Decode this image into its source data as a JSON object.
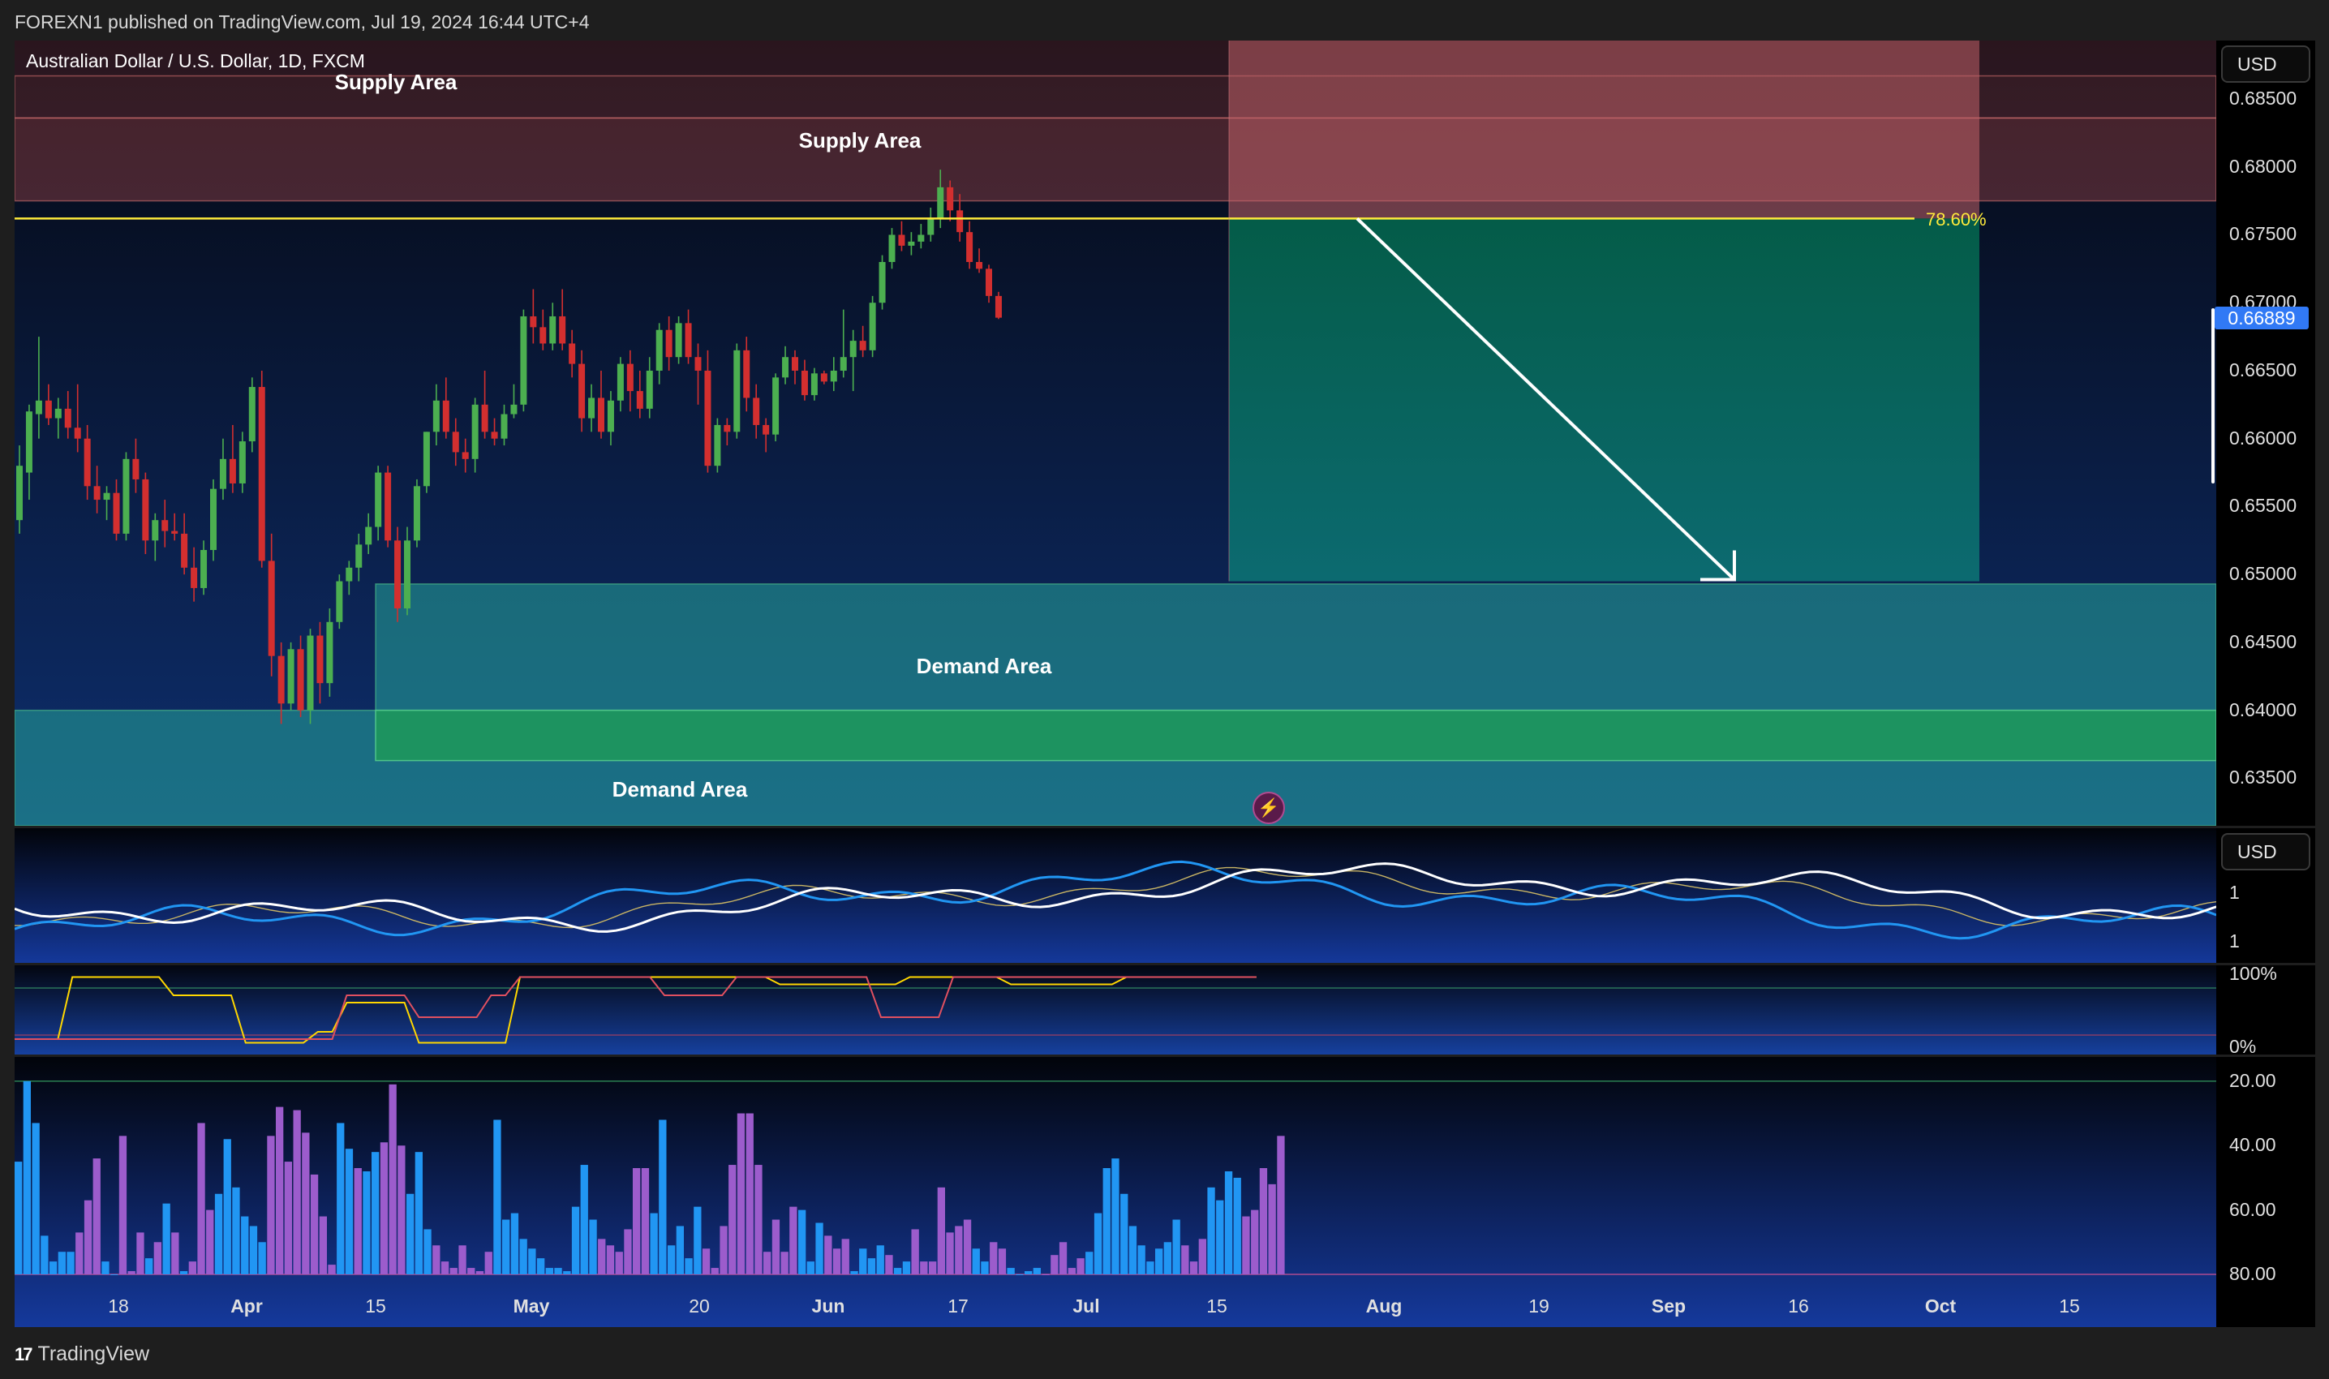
{
  "header": {
    "published": "FOREXN1 published on TradingView.com, Jul 19, 2024 16:44 UTC+4",
    "symbol": "Australian Dollar / U.S. Dollar, 1D, FXCM"
  },
  "footer": {
    "brand": "TradingView",
    "logo_glyph": "17"
  },
  "currency": "USD",
  "colors": {
    "up": "#4caf50",
    "down": "#d32f2f",
    "supply": "#b04b50",
    "demand": "#26a69a",
    "fib_line": "#ffeb3b",
    "arrow": "#ffffff",
    "last_price": "#3179f5",
    "volume_blue": "#2196f3",
    "volume_purple": "#9c5ccc"
  },
  "chart_data": [
    {
      "type": "candlestick",
      "title": "Australian Dollar / U.S. Dollar, 1D, FXCM",
      "ylim": [
        0.6315,
        0.6893
      ],
      "y_ticks": [
        "0.68500",
        "0.68000",
        "0.67500",
        "0.67000",
        "0.66500",
        "0.66000",
        "0.65500",
        "0.65000",
        "0.64500",
        "0.64000",
        "0.63500"
      ],
      "x_ticks": [
        "18",
        "Apr",
        "15",
        "May",
        "20",
        "Jun",
        "17",
        "Jul",
        "15",
        "Aug",
        "19",
        "Sep",
        "16",
        "Oct",
        "15"
      ],
      "last_price": "0.66889",
      "fib_level": {
        "label": "78.60%",
        "price": 0.6762
      },
      "zones": [
        {
          "label": "Supply Area",
          "kind": "supply",
          "from": 0.6836,
          "to": 0.6867
        },
        {
          "label": "Supply Area",
          "kind": "supply",
          "from": 0.6775,
          "to": 0.6836
        },
        {
          "label": "Demand Area",
          "kind": "demand",
          "from": 0.64,
          "to": 0.6493
        },
        {
          "label": "Demand Area",
          "kind": "demand",
          "from": 0.6315,
          "to": 0.64
        }
      ],
      "projection": {
        "entry": 0.6762,
        "target": 0.6495
      },
      "candles_ohlc": [
        [
          0.654,
          0.6595,
          0.653,
          0.658
        ],
        [
          0.6575,
          0.6625,
          0.6555,
          0.662
        ],
        [
          0.6618,
          0.6675,
          0.66,
          0.6628
        ],
        [
          0.6628,
          0.664,
          0.661,
          0.6615
        ],
        [
          0.6615,
          0.663,
          0.66,
          0.6622
        ],
        [
          0.6622,
          0.6635,
          0.66,
          0.6608
        ],
        [
          0.6608,
          0.664,
          0.659,
          0.66
        ],
        [
          0.66,
          0.661,
          0.6555,
          0.6565
        ],
        [
          0.6565,
          0.658,
          0.6545,
          0.6555
        ],
        [
          0.6555,
          0.6565,
          0.654,
          0.656
        ],
        [
          0.656,
          0.657,
          0.6525,
          0.653
        ],
        [
          0.653,
          0.659,
          0.6525,
          0.6585
        ],
        [
          0.6585,
          0.66,
          0.656,
          0.657
        ],
        [
          0.657,
          0.6575,
          0.6515,
          0.6525
        ],
        [
          0.6525,
          0.6545,
          0.651,
          0.654
        ],
        [
          0.654,
          0.6555,
          0.652,
          0.6532
        ],
        [
          0.6532,
          0.6545,
          0.6525,
          0.653
        ],
        [
          0.653,
          0.6545,
          0.65,
          0.6505
        ],
        [
          0.6505,
          0.652,
          0.648,
          0.649
        ],
        [
          0.649,
          0.6525,
          0.6485,
          0.6518
        ],
        [
          0.6518,
          0.657,
          0.651,
          0.6563
        ],
        [
          0.6563,
          0.66,
          0.6555,
          0.6585
        ],
        [
          0.6585,
          0.661,
          0.656,
          0.6567
        ],
        [
          0.6567,
          0.6605,
          0.656,
          0.6598
        ],
        [
          0.6598,
          0.6645,
          0.659,
          0.6638
        ],
        [
          0.6638,
          0.665,
          0.6505,
          0.651
        ],
        [
          0.651,
          0.653,
          0.6425,
          0.644
        ],
        [
          0.644,
          0.645,
          0.639,
          0.6405
        ],
        [
          0.6405,
          0.645,
          0.64,
          0.6445
        ],
        [
          0.6445,
          0.6455,
          0.6395,
          0.64
        ],
        [
          0.64,
          0.646,
          0.639,
          0.6455
        ],
        [
          0.6455,
          0.6465,
          0.6405,
          0.642
        ],
        [
          0.642,
          0.6475,
          0.641,
          0.6465
        ],
        [
          0.6465,
          0.65,
          0.646,
          0.6495
        ],
        [
          0.6495,
          0.651,
          0.6485,
          0.6505
        ],
        [
          0.6505,
          0.653,
          0.6495,
          0.6522
        ],
        [
          0.6522,
          0.6545,
          0.6515,
          0.6535
        ],
        [
          0.6535,
          0.658,
          0.6525,
          0.6575
        ],
        [
          0.6575,
          0.658,
          0.652,
          0.6525
        ],
        [
          0.6525,
          0.6535,
          0.6465,
          0.6475
        ],
        [
          0.6475,
          0.6535,
          0.647,
          0.6525
        ],
        [
          0.6525,
          0.657,
          0.652,
          0.6565
        ],
        [
          0.6565,
          0.6605,
          0.656,
          0.6605
        ],
        [
          0.6605,
          0.664,
          0.6595,
          0.6628
        ],
        [
          0.6628,
          0.6645,
          0.66,
          0.6605
        ],
        [
          0.6605,
          0.6615,
          0.658,
          0.659
        ],
        [
          0.659,
          0.66,
          0.6575,
          0.6585
        ],
        [
          0.6585,
          0.663,
          0.6575,
          0.6625
        ],
        [
          0.6625,
          0.665,
          0.66,
          0.6605
        ],
        [
          0.6605,
          0.6615,
          0.6595,
          0.66
        ],
        [
          0.66,
          0.6625,
          0.6595,
          0.6618
        ],
        [
          0.6618,
          0.664,
          0.6615,
          0.6625
        ],
        [
          0.6625,
          0.6695,
          0.662,
          0.669
        ],
        [
          0.669,
          0.671,
          0.667,
          0.6682
        ],
        [
          0.6682,
          0.6695,
          0.6665,
          0.667
        ],
        [
          0.667,
          0.67,
          0.6665,
          0.669
        ],
        [
          0.669,
          0.671,
          0.6665,
          0.667
        ],
        [
          0.667,
          0.668,
          0.6645,
          0.6655
        ],
        [
          0.6655,
          0.6665,
          0.6605,
          0.6615
        ],
        [
          0.6615,
          0.664,
          0.6605,
          0.663
        ],
        [
          0.663,
          0.665,
          0.66,
          0.6605
        ],
        [
          0.6605,
          0.6635,
          0.6595,
          0.6628
        ],
        [
          0.6628,
          0.666,
          0.662,
          0.6655
        ],
        [
          0.6655,
          0.6665,
          0.662,
          0.6635
        ],
        [
          0.6635,
          0.665,
          0.6615,
          0.6622
        ],
        [
          0.6622,
          0.666,
          0.6615,
          0.665
        ],
        [
          0.665,
          0.6685,
          0.664,
          0.668
        ],
        [
          0.668,
          0.669,
          0.665,
          0.666
        ],
        [
          0.666,
          0.669,
          0.6655,
          0.6685
        ],
        [
          0.6685,
          0.6695,
          0.6655,
          0.666
        ],
        [
          0.666,
          0.667,
          0.6625,
          0.665
        ],
        [
          0.665,
          0.6665,
          0.6575,
          0.658
        ],
        [
          0.658,
          0.6615,
          0.6575,
          0.661
        ],
        [
          0.661,
          0.6615,
          0.6595,
          0.6605
        ],
        [
          0.6605,
          0.667,
          0.66,
          0.6665
        ],
        [
          0.6665,
          0.6675,
          0.662,
          0.663
        ],
        [
          0.663,
          0.664,
          0.66,
          0.661
        ],
        [
          0.661,
          0.6615,
          0.659,
          0.6603
        ],
        [
          0.6603,
          0.6648,
          0.6598,
          0.6645
        ],
        [
          0.6645,
          0.6668,
          0.664,
          0.666
        ],
        [
          0.666,
          0.6665,
          0.664,
          0.665
        ],
        [
          0.665,
          0.6658,
          0.6628,
          0.6632
        ],
        [
          0.6632,
          0.6652,
          0.6628,
          0.6648
        ],
        [
          0.6648,
          0.665,
          0.664,
          0.6642
        ],
        [
          0.6642,
          0.666,
          0.6635,
          0.665
        ],
        [
          0.665,
          0.6695,
          0.6645,
          0.666
        ],
        [
          0.666,
          0.668,
          0.6635,
          0.6672
        ],
        [
          0.6672,
          0.6683,
          0.666,
          0.6665
        ],
        [
          0.6665,
          0.6705,
          0.666,
          0.67
        ],
        [
          0.67,
          0.6735,
          0.6695,
          0.673
        ],
        [
          0.673,
          0.6755,
          0.6725,
          0.675
        ],
        [
          0.675,
          0.676,
          0.6738,
          0.6742
        ],
        [
          0.6742,
          0.6752,
          0.6735,
          0.6745
        ],
        [
          0.6745,
          0.6758,
          0.674,
          0.675
        ],
        [
          0.675,
          0.677,
          0.6745,
          0.6762
        ],
        [
          0.6762,
          0.6798,
          0.6755,
          0.6785
        ],
        [
          0.6785,
          0.679,
          0.676,
          0.6768
        ],
        [
          0.6768,
          0.678,
          0.6745,
          0.6752
        ],
        [
          0.6752,
          0.676,
          0.6725,
          0.673
        ],
        [
          0.673,
          0.674,
          0.6722,
          0.6725
        ],
        [
          0.6725,
          0.6728,
          0.67,
          0.6705
        ],
        [
          0.6705,
          0.6708,
          0.6688,
          0.6689
        ]
      ]
    },
    {
      "type": "line",
      "series": [
        {
          "name": "",
          "color": "#ffffff"
        },
        {
          "name": "",
          "color": "#2196f3"
        },
        {
          "name": "",
          "color": "#c8b464"
        }
      ],
      "y_ticks": [
        "1",
        "1"
      ]
    },
    {
      "type": "line",
      "y_ticks": [
        "100%",
        "0%"
      ],
      "series": [
        {
          "name": "",
          "color": "#ffd700",
          "values": [
            0.1,
            0.1,
            0.1,
            0.1,
            0.95,
            0.95,
            0.95,
            0.95,
            0.95,
            0.95,
            0.95,
            0.7,
            0.7,
            0.7,
            0.7,
            0.7,
            0.05,
            0.05,
            0.05,
            0.05,
            0.05,
            0.2,
            0.2,
            0.6,
            0.6,
            0.6,
            0.6,
            0.6,
            0.05,
            0.05,
            0.05,
            0.05,
            0.05,
            0.05,
            0.05,
            0.95,
            0.95,
            0.95,
            0.95,
            0.95,
            0.95,
            0.95,
            0.95,
            0.95,
            0.95,
            0.95,
            0.95,
            0.95,
            0.95,
            0.95,
            0.95,
            0.95,
            0.95,
            0.85,
            0.85,
            0.85,
            0.85,
            0.85,
            0.85,
            0.85,
            0.85,
            0.85,
            0.95,
            0.95,
            0.95,
            0.95,
            0.95,
            0.95,
            0.95,
            0.85,
            0.85,
            0.85,
            0.85,
            0.85,
            0.85,
            0.85,
            0.85,
            0.95,
            0.95,
            0.95,
            0.95,
            0.95,
            0.95,
            0.95,
            0.95,
            0.95,
            0.95
          ]
        },
        {
          "name": "",
          "color": "#e05060",
          "values": [
            0.1,
            0.1,
            0.1,
            0.1,
            0.1,
            0.1,
            0.1,
            0.1,
            0.1,
            0.1,
            0.1,
            0.1,
            0.1,
            0.1,
            0.1,
            0.1,
            0.1,
            0.1,
            0.1,
            0.1,
            0.1,
            0.1,
            0.1,
            0.7,
            0.7,
            0.7,
            0.7,
            0.7,
            0.4,
            0.4,
            0.4,
            0.4,
            0.4,
            0.7,
            0.7,
            0.95,
            0.95,
            0.95,
            0.95,
            0.95,
            0.95,
            0.95,
            0.95,
            0.95,
            0.95,
            0.7,
            0.7,
            0.7,
            0.7,
            0.7,
            0.95,
            0.95,
            0.95,
            0.95,
            0.95,
            0.95,
            0.95,
            0.95,
            0.95,
            0.95,
            0.4,
            0.4,
            0.4,
            0.4,
            0.4,
            0.95,
            0.95,
            0.95,
            0.95,
            0.95,
            0.95,
            0.95,
            0.95,
            0.95,
            0.95,
            0.95,
            0.95,
            0.95,
            0.95,
            0.95,
            0.95,
            0.95,
            0.95,
            0.95,
            0.95,
            0.95,
            0.95
          ]
        }
      ]
    },
    {
      "type": "bar",
      "y_ticks": [
        "20.00",
        "40.00",
        "60.00",
        "80.00"
      ],
      "ylim_inverted": [
        15,
        80
      ],
      "values": [
        45,
        20,
        33,
        68,
        76,
        73,
        73,
        67,
        57,
        44,
        76,
        80,
        37,
        79,
        67,
        75,
        70,
        58,
        67,
        79,
        76,
        33,
        60,
        55,
        38,
        53,
        62,
        65,
        70,
        37,
        28,
        45,
        29,
        36,
        49,
        62,
        77,
        33,
        41,
        47,
        48,
        42,
        39,
        21,
        40,
        55,
        42,
        66,
        71,
        76,
        78,
        71,
        78,
        79,
        73,
        32,
        63,
        61,
        69,
        72,
        75,
        78,
        78,
        79,
        59,
        46,
        63,
        69,
        71,
        73,
        66,
        47,
        47,
        61,
        32,
        71,
        65,
        75,
        59,
        72,
        78,
        65,
        46,
        30,
        30,
        46,
        73,
        63,
        73,
        59,
        60,
        76,
        64,
        68,
        72,
        69,
        79,
        72,
        75,
        71,
        74,
        78,
        76,
        66,
        76,
        76,
        53,
        67,
        65,
        63,
        72,
        76,
        70,
        72,
        78,
        80,
        79,
        78,
        80,
        74,
        70,
        78,
        75,
        73,
        61,
        47,
        44,
        55,
        65,
        71,
        76,
        72,
        70,
        63,
        71,
        76,
        69,
        53,
        57,
        48,
        50,
        62,
        60,
        47,
        52,
        37
      ],
      "colors_key": [
        "b",
        "b",
        "b",
        "b",
        "b",
        "b",
        "b",
        "p",
        "p",
        "p",
        "b",
        "b",
        "p",
        "p",
        "p",
        "b",
        "p",
        "b",
        "p",
        "b",
        "p",
        "p",
        "p",
        "b",
        "b",
        "b",
        "b",
        "b",
        "b",
        "p",
        "p",
        "p",
        "p",
        "p",
        "p",
        "p",
        "p",
        "b",
        "b",
        "p",
        "b",
        "b",
        "p",
        "p",
        "p",
        "b",
        "b",
        "b",
        "p",
        "p",
        "p",
        "p",
        "p",
        "p",
        "p",
        "b",
        "b",
        "b",
        "b",
        "b",
        "b",
        "b",
        "b",
        "b",
        "b",
        "b",
        "b",
        "p",
        "p",
        "p",
        "p",
        "p",
        "p",
        "b",
        "b",
        "b",
        "b",
        "b",
        "b",
        "p",
        "p",
        "p",
        "p",
        "p",
        "p",
        "p",
        "p",
        "p",
        "p",
        "p",
        "b",
        "b",
        "b",
        "p",
        "p",
        "p",
        "b",
        "b",
        "b",
        "b",
        "p",
        "b",
        "b",
        "p",
        "p",
        "p",
        "p",
        "p",
        "p",
        "p",
        "b",
        "b",
        "p",
        "p",
        "b",
        "b",
        "b",
        "b",
        "p",
        "p",
        "p",
        "p",
        "p",
        "b",
        "b",
        "b",
        "b",
        "b",
        "b",
        "b",
        "b",
        "b",
        "b",
        "b",
        "p",
        "p",
        "p",
        "b",
        "b",
        "b",
        "b",
        "p",
        "p",
        "p",
        "p",
        "p"
      ]
    }
  ],
  "main_scale_ticks": [
    "0.68500",
    "0.68000",
    "0.67500",
    "0.67000",
    "0.66500",
    "0.66000",
    "0.65500",
    "0.65000",
    "0.64500",
    "0.64000",
    "0.63500"
  ]
}
